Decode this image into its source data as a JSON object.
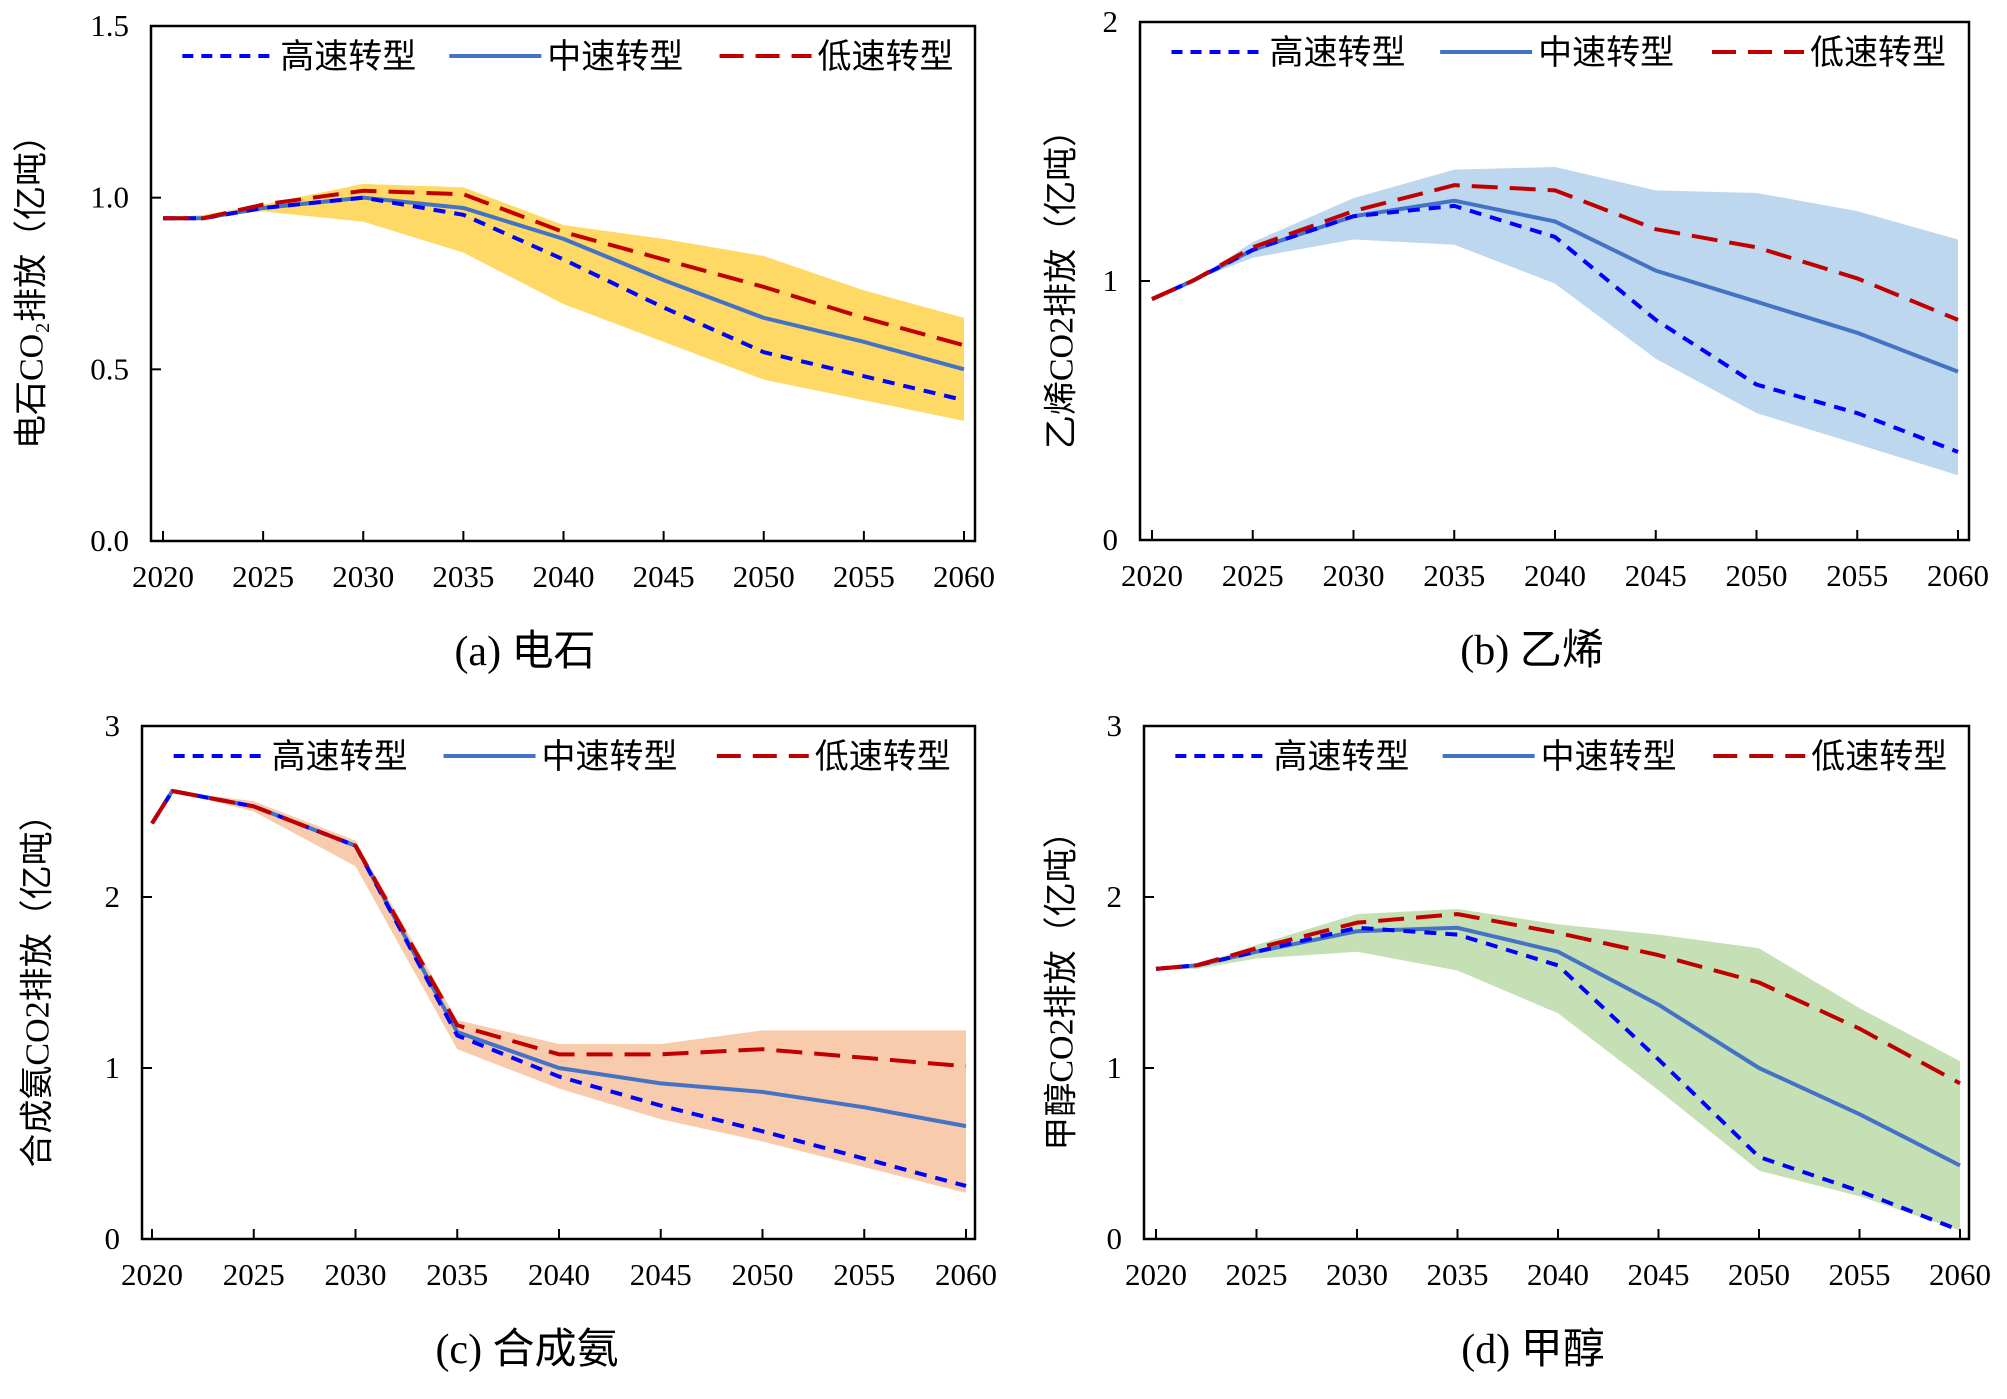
{
  "legend": [
    "高速转型",
    "中速转型",
    "低速转型"
  ],
  "colors": {
    "high": "#0000FF",
    "mid": "#4472C4",
    "low": "#C00000"
  },
  "chart_data": [
    {
      "type": "line",
      "title": "(a) 电石",
      "ylabel": "电石CO₂排放（亿吨）",
      "ylim": [
        0,
        1.5
      ],
      "yticks": [
        "0.0",
        "0.5",
        "1.0",
        "1.5"
      ],
      "yticks_values": [
        0,
        0.5,
        1.0,
        1.5
      ],
      "xlim": [
        2020,
        2060
      ],
      "xticks": [
        "2020",
        "2025",
        "2030",
        "2035",
        "2040",
        "2045",
        "2050",
        "2055",
        "2060"
      ],
      "band_color": "#FFD966",
      "x": [
        2020,
        2022,
        2025,
        2030,
        2035,
        2040,
        2045,
        2050,
        2055,
        2060
      ],
      "series": [
        {
          "name": "高速转型",
          "values": [
            0.94,
            0.94,
            0.97,
            1.0,
            0.95,
            0.82,
            0.68,
            0.55,
            0.48,
            0.41
          ]
        },
        {
          "name": "中速转型",
          "values": [
            0.94,
            0.94,
            0.97,
            1.0,
            0.97,
            0.88,
            0.76,
            0.65,
            0.58,
            0.5
          ]
        },
        {
          "name": "低速转型",
          "values": [
            0.94,
            0.94,
            0.98,
            1.02,
            1.01,
            0.9,
            0.82,
            0.74,
            0.65,
            0.57
          ]
        }
      ],
      "band_upper": [
        0.94,
        0.95,
        0.98,
        1.04,
        1.03,
        0.92,
        0.88,
        0.83,
        0.73,
        0.65
      ],
      "band_lower": [
        0.94,
        0.94,
        0.96,
        0.93,
        0.84,
        0.69,
        0.58,
        0.47,
        0.41,
        0.35
      ]
    },
    {
      "type": "line",
      "title": "(b) 乙烯",
      "ylabel": "乙烯CO2排放（亿吨）",
      "ylim": [
        0,
        2
      ],
      "yticks": [
        "0",
        "1",
        "2"
      ],
      "yticks_values": [
        0,
        1,
        2
      ],
      "xlim": [
        2020,
        2060
      ],
      "xticks": [
        "2020",
        "2025",
        "2030",
        "2035",
        "2040",
        "2045",
        "2050",
        "2055",
        "2060"
      ],
      "band_color": "#BDD7EE",
      "x": [
        2020,
        2022,
        2025,
        2030,
        2035,
        2040,
        2045,
        2050,
        2055,
        2060
      ],
      "series": [
        {
          "name": "高速转型",
          "values": [
            0.93,
            1.0,
            1.12,
            1.25,
            1.29,
            1.17,
            0.85,
            0.6,
            0.49,
            0.34
          ]
        },
        {
          "name": "中速转型",
          "values": [
            0.93,
            1.0,
            1.12,
            1.25,
            1.31,
            1.23,
            1.04,
            0.92,
            0.8,
            0.65
          ]
        },
        {
          "name": "低速转型",
          "values": [
            0.93,
            1.0,
            1.13,
            1.27,
            1.37,
            1.35,
            1.2,
            1.13,
            1.01,
            0.85
          ]
        }
      ],
      "band_upper": [
        0.93,
        1.0,
        1.15,
        1.32,
        1.43,
        1.44,
        1.35,
        1.34,
        1.27,
        1.16
      ],
      "band_lower": [
        0.93,
        1.0,
        1.09,
        1.16,
        1.14,
        0.99,
        0.7,
        0.49,
        0.37,
        0.25
      ]
    },
    {
      "type": "line",
      "title": "(c) 合成氨",
      "ylabel": "合成氨CO2排放（亿吨）",
      "ylim": [
        0,
        3
      ],
      "yticks": [
        "0",
        "1",
        "2",
        "3"
      ],
      "yticks_values": [
        0,
        1,
        2,
        3
      ],
      "xlim": [
        2020,
        2060
      ],
      "xticks": [
        "2020",
        "2025",
        "2030",
        "2035",
        "2040",
        "2045",
        "2050",
        "2055",
        "2060"
      ],
      "band_color": "#F8CBAD",
      "x": [
        2020,
        2021,
        2025,
        2030,
        2035,
        2040,
        2045,
        2050,
        2055,
        2060
      ],
      "series": [
        {
          "name": "高速转型",
          "values": [
            2.43,
            2.62,
            2.53,
            2.3,
            1.19,
            0.95,
            0.78,
            0.63,
            0.47,
            0.31
          ]
        },
        {
          "name": "中速转型",
          "values": [
            2.43,
            2.62,
            2.53,
            2.3,
            1.21,
            1.0,
            0.91,
            0.86,
            0.77,
            0.66
          ]
        },
        {
          "name": "低速转型",
          "values": [
            2.43,
            2.62,
            2.53,
            2.3,
            1.25,
            1.08,
            1.08,
            1.11,
            1.06,
            1.01
          ]
        }
      ],
      "band_upper": [
        2.43,
        2.62,
        2.56,
        2.33,
        1.28,
        1.14,
        1.14,
        1.22,
        1.22,
        1.22
      ],
      "band_lower": [
        2.43,
        2.62,
        2.5,
        2.18,
        1.11,
        0.88,
        0.7,
        0.57,
        0.42,
        0.27
      ]
    },
    {
      "type": "line",
      "title": "(d) 甲醇",
      "ylabel": "甲醇CO2排放（亿吨）",
      "ylim": [
        0,
        3
      ],
      "yticks": [
        "0",
        "1",
        "2",
        "3"
      ],
      "yticks_values": [
        0,
        1,
        2,
        3
      ],
      "xlim": [
        2020,
        2060
      ],
      "xticks": [
        "2020",
        "2025",
        "2030",
        "2035",
        "2040",
        "2045",
        "2050",
        "2055",
        "2060"
      ],
      "band_color": "#C5E0B4",
      "x": [
        2020,
        2022,
        2025,
        2030,
        2035,
        2040,
        2045,
        2050,
        2055,
        2060
      ],
      "series": [
        {
          "name": "高速转型",
          "values": [
            1.58,
            1.6,
            1.68,
            1.82,
            1.78,
            1.6,
            1.05,
            0.48,
            0.28,
            0.05
          ]
        },
        {
          "name": "中速转型",
          "values": [
            1.58,
            1.6,
            1.68,
            1.8,
            1.82,
            1.68,
            1.37,
            1.0,
            0.73,
            0.43
          ]
        },
        {
          "name": "低速转型",
          "values": [
            1.58,
            1.6,
            1.7,
            1.85,
            1.9,
            1.79,
            1.66,
            1.5,
            1.23,
            0.91
          ]
        }
      ],
      "band_upper": [
        1.58,
        1.6,
        1.72,
        1.9,
        1.93,
        1.84,
        1.78,
        1.7,
        1.35,
        1.04
      ],
      "band_lower": [
        1.58,
        1.58,
        1.64,
        1.68,
        1.57,
        1.32,
        0.87,
        0.4,
        0.25,
        0.05
      ]
    }
  ]
}
